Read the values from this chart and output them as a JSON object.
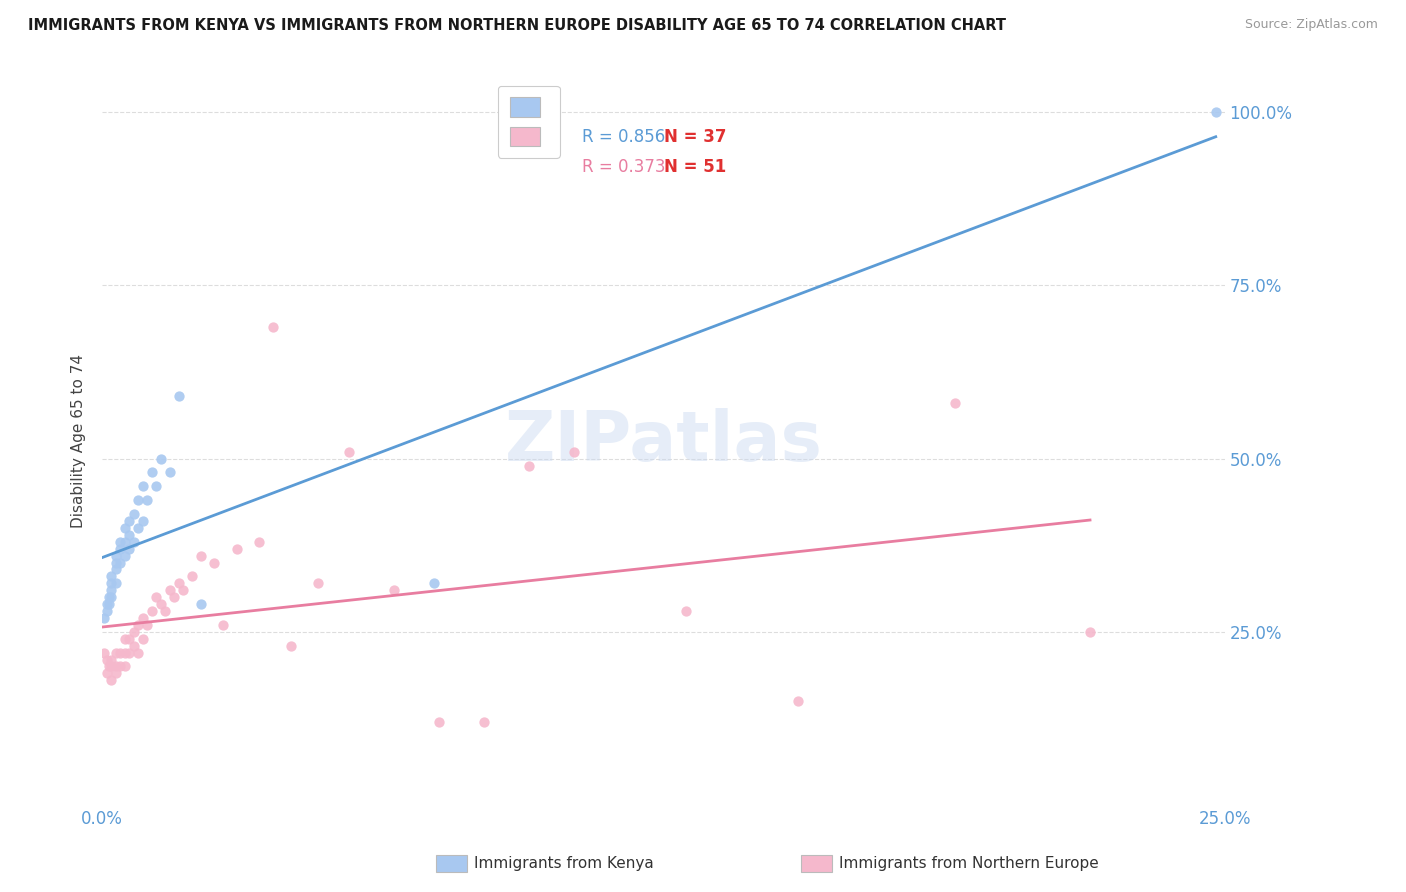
{
  "title": "IMMIGRANTS FROM KENYA VS IMMIGRANTS FROM NORTHERN EUROPE DISABILITY AGE 65 TO 74 CORRELATION CHART",
  "source": "Source: ZipAtlas.com",
  "ylabel": "Disability Age 65 to 74",
  "xlim": [
    0.0,
    0.25
  ],
  "ylim": [
    0.0,
    1.05
  ],
  "x_ticks": [
    0.0,
    0.05,
    0.1,
    0.15,
    0.2,
    0.25
  ],
  "x_tick_labels": [
    "0.0%",
    "",
    "",
    "",
    "",
    "25.0%"
  ],
  "y_tick_labels": [
    "25.0%",
    "50.0%",
    "75.0%",
    "100.0%"
  ],
  "y_ticks": [
    0.25,
    0.5,
    0.75,
    1.0
  ],
  "kenya_color": "#A8C8F0",
  "northern_europe_color": "#F5B8CC",
  "kenya_R": 0.856,
  "kenya_N": 37,
  "northern_europe_R": 0.373,
  "northern_europe_N": 51,
  "kenya_line_color": "#5B9BD5",
  "northern_europe_line_color": "#E87DA0",
  "watermark": "ZIPatlas",
  "kenya_x": [
    0.0005,
    0.001,
    0.001,
    0.0015,
    0.0015,
    0.002,
    0.002,
    0.002,
    0.002,
    0.003,
    0.003,
    0.003,
    0.003,
    0.004,
    0.004,
    0.004,
    0.005,
    0.005,
    0.005,
    0.006,
    0.006,
    0.006,
    0.007,
    0.007,
    0.008,
    0.008,
    0.009,
    0.009,
    0.01,
    0.011,
    0.012,
    0.013,
    0.015,
    0.017,
    0.022,
    0.074,
    0.248
  ],
  "kenya_y": [
    0.27,
    0.28,
    0.29,
    0.29,
    0.3,
    0.3,
    0.31,
    0.32,
    0.33,
    0.32,
    0.34,
    0.35,
    0.36,
    0.35,
    0.37,
    0.38,
    0.36,
    0.38,
    0.4,
    0.37,
    0.39,
    0.41,
    0.38,
    0.42,
    0.4,
    0.44,
    0.41,
    0.46,
    0.44,
    0.48,
    0.46,
    0.5,
    0.48,
    0.59,
    0.29,
    0.32,
    1.0
  ],
  "northern_europe_x": [
    0.0005,
    0.001,
    0.001,
    0.0015,
    0.002,
    0.002,
    0.002,
    0.003,
    0.003,
    0.003,
    0.004,
    0.004,
    0.005,
    0.005,
    0.005,
    0.006,
    0.006,
    0.007,
    0.007,
    0.008,
    0.008,
    0.009,
    0.009,
    0.01,
    0.011,
    0.012,
    0.013,
    0.014,
    0.015,
    0.016,
    0.017,
    0.018,
    0.02,
    0.022,
    0.025,
    0.027,
    0.03,
    0.035,
    0.038,
    0.042,
    0.048,
    0.055,
    0.065,
    0.075,
    0.085,
    0.095,
    0.105,
    0.13,
    0.155,
    0.19,
    0.22
  ],
  "northern_europe_y": [
    0.22,
    0.19,
    0.21,
    0.2,
    0.18,
    0.2,
    0.21,
    0.19,
    0.2,
    0.22,
    0.2,
    0.22,
    0.2,
    0.22,
    0.24,
    0.22,
    0.24,
    0.23,
    0.25,
    0.22,
    0.26,
    0.24,
    0.27,
    0.26,
    0.28,
    0.3,
    0.29,
    0.28,
    0.31,
    0.3,
    0.32,
    0.31,
    0.33,
    0.36,
    0.35,
    0.26,
    0.37,
    0.38,
    0.69,
    0.23,
    0.32,
    0.51,
    0.31,
    0.12,
    0.12,
    0.49,
    0.51,
    0.28,
    0.15,
    0.58,
    0.25
  ]
}
